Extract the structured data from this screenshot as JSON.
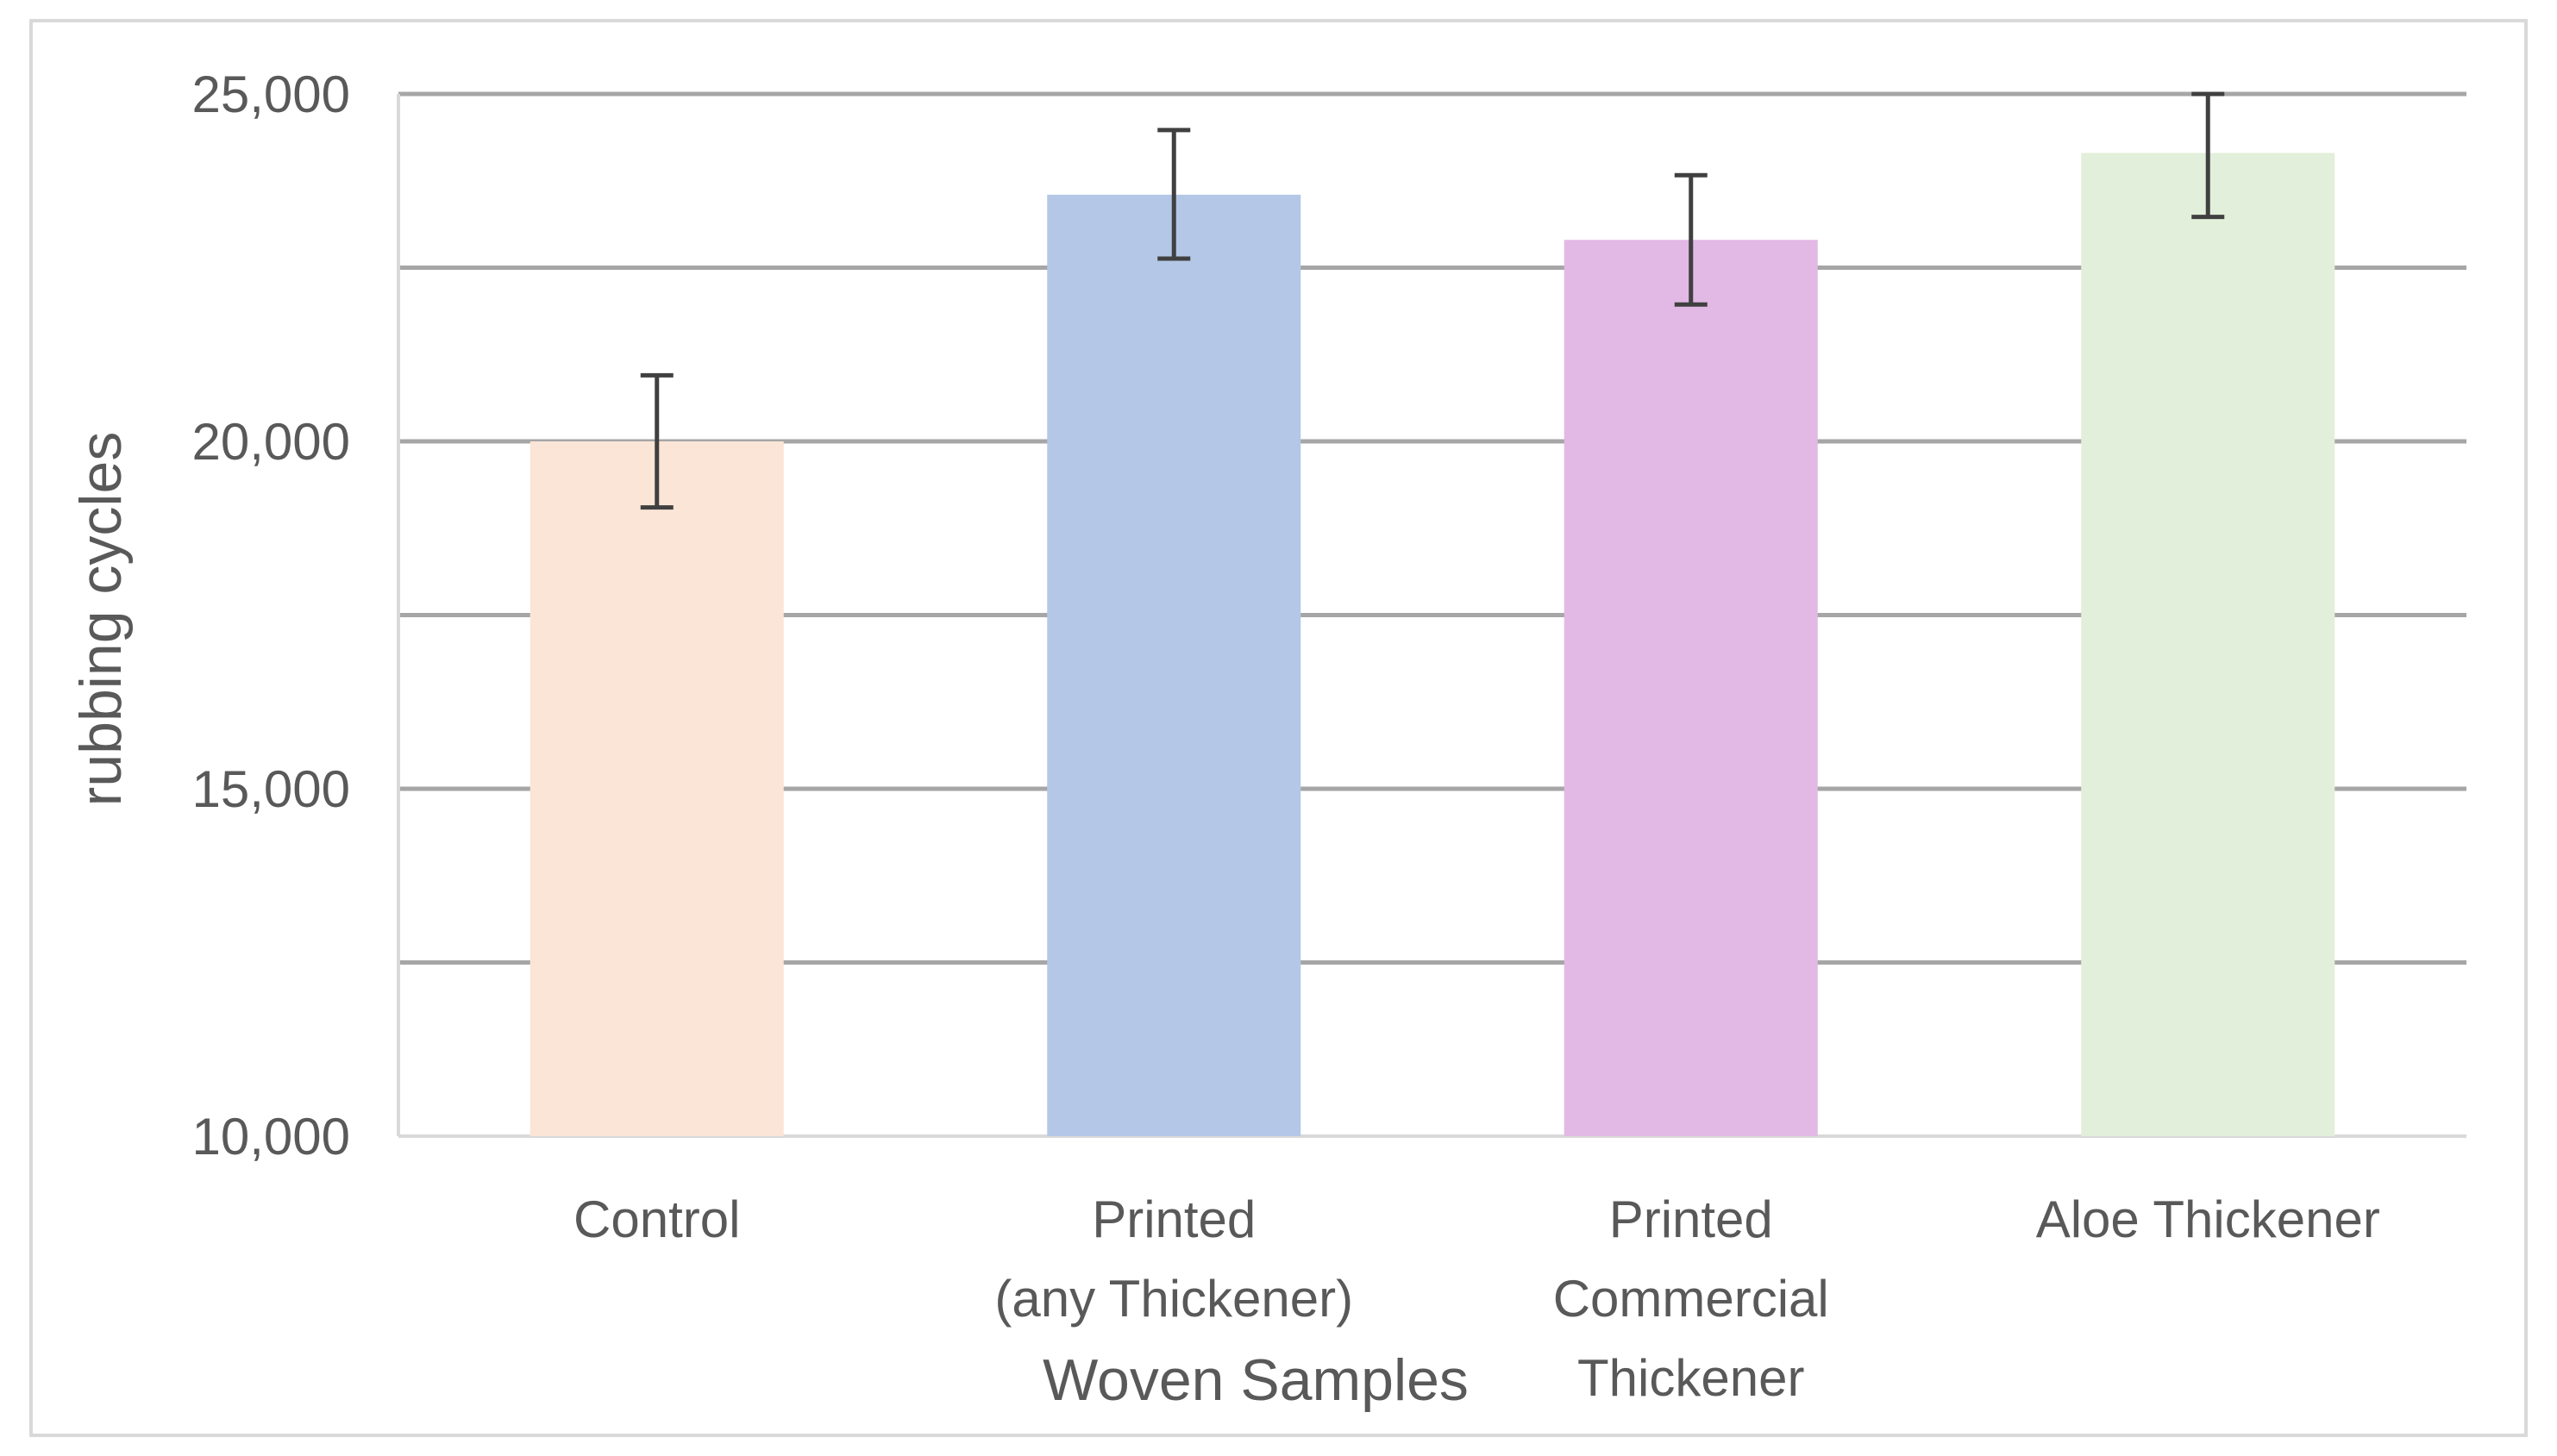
{
  "chart_data": {
    "type": "bar",
    "title": "",
    "xlabel": "Woven Samples",
    "ylabel": "rubbing cycles",
    "ylim": [
      10000,
      25000
    ],
    "yticks": [
      10000,
      15000,
      20000,
      25000
    ],
    "ytick_labels": [
      "10,000",
      "15,000",
      "20,000",
      "25,000"
    ],
    "minor_gridlines": [
      12500,
      17500,
      22500
    ],
    "grid": true,
    "legend": "none",
    "categories": [
      [
        "Control"
      ],
      [
        "Printed",
        "(any Thickener)"
      ],
      [
        "Printed",
        "Commercial",
        "Thickener"
      ],
      [
        "Aloe Thickener"
      ]
    ],
    "values": [
      20000,
      23550,
      22900,
      24150
    ],
    "error_bars": [
      [
        19050,
        20950
      ],
      [
        22630,
        24480
      ],
      [
        21970,
        23830
      ],
      [
        23230,
        25000
      ]
    ],
    "colors": [
      "#fae5d7",
      "#b4c7e7",
      "#e2b8e5",
      "#e2efda"
    ],
    "gridline_color": "#a6a6a6",
    "error_bar_color": "#404040"
  }
}
